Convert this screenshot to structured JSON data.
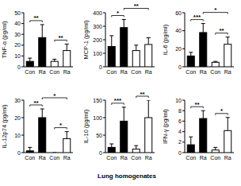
{
  "chart_data": [
    {
      "type": "bar",
      "ylabel": "TNF-α (pg/ml)",
      "categories": [
        "Con",
        "Ra",
        "Con",
        "Ra"
      ],
      "values": [
        5,
        27,
        5,
        15
      ],
      "errors": [
        3,
        12,
        2,
        6
      ],
      "colors": [
        "#000000",
        "#000000",
        "#ffffff",
        "#ffffff"
      ],
      "ylim": [
        0,
        50
      ],
      "yticks": [
        0,
        10,
        20,
        30,
        40,
        50
      ],
      "significance": [
        {
          "text": "**",
          "bars": [
            0,
            1
          ]
        },
        {
          "text": "**",
          "bars": [
            2,
            3
          ]
        }
      ]
    },
    {
      "type": "bar",
      "ylabel": "MCP-1 (pg/ml)",
      "categories": [
        "Con",
        "Ra",
        "Con",
        "Ra"
      ],
      "values": [
        150,
        290,
        120,
        165
      ],
      "errors": [
        80,
        60,
        40,
        50
      ],
      "colors": [
        "#000000",
        "#000000",
        "#ffffff",
        "#ffffff"
      ],
      "ylim": [
        0,
        400
      ],
      "yticks": [
        0,
        100,
        200,
        300,
        400
      ],
      "significance": [
        {
          "text": "*",
          "bars": [
            0,
            1
          ]
        },
        {
          "text": "**",
          "bars": [
            1,
            3
          ]
        }
      ]
    },
    {
      "type": "bar",
      "ylabel": "IL-6 (pg/ml)",
      "categories": [
        "Con",
        "Ra",
        "Con",
        "Ra"
      ],
      "values": [
        12,
        38,
        5,
        25
      ],
      "errors": [
        4,
        10,
        1,
        8
      ],
      "colors": [
        "#000000",
        "#000000",
        "#ffffff",
        "#ffffff"
      ],
      "ylim": [
        0,
        60
      ],
      "yticks": [
        0,
        20,
        40,
        60
      ],
      "significance": [
        {
          "text": "***",
          "bars": [
            0,
            1
          ]
        },
        {
          "text": "**",
          "bars": [
            2,
            3
          ]
        },
        {
          "text": "*",
          "bars": [
            1,
            3
          ]
        }
      ]
    },
    {
      "type": "bar",
      "ylabel": "IL-12p74 (pg/ml)",
      "categories": [
        "Con",
        "Ra",
        "Con",
        "Ra"
      ],
      "values": [
        1,
        20,
        0,
        8
      ],
      "errors": [
        2,
        5,
        0,
        4
      ],
      "colors": [
        "#000000",
        "#000000",
        "#ffffff",
        "#ffffff"
      ],
      "ylim": [
        0,
        30
      ],
      "yticks": [
        0,
        10,
        20,
        30
      ],
      "significance": [
        {
          "text": "**",
          "bars": [
            0,
            1
          ]
        },
        {
          "text": "*",
          "bars": [
            2,
            3
          ]
        },
        {
          "text": "*",
          "bars": [
            1,
            3
          ]
        }
      ]
    },
    {
      "type": "bar",
      "ylabel": "IL-10 (pg/ml)",
      "categories": [
        "Con",
        "Ra",
        "Con",
        "Ra"
      ],
      "values": [
        15,
        90,
        10,
        100
      ],
      "errors": [
        10,
        40,
        10,
        50
      ],
      "colors": [
        "#000000",
        "#000000",
        "#ffffff",
        "#ffffff"
      ],
      "ylim": [
        0,
        150
      ],
      "yticks": [
        0,
        50,
        100,
        150
      ],
      "significance": [
        {
          "text": "***",
          "bars": [
            0,
            1
          ]
        },
        {
          "text": "**",
          "bars": [
            2,
            3
          ]
        }
      ]
    },
    {
      "type": "bar",
      "ylabel": "IFN-γ (pg/ml)",
      "categories": [
        "Con",
        "Ra",
        "Con",
        "Ra"
      ],
      "values": [
        1.5,
        6.5,
        0.5,
        4.2
      ],
      "errors": [
        1.5,
        1.5,
        0.5,
        2.5
      ],
      "colors": [
        "#000000",
        "#000000",
        "#ffffff",
        "#ffffff"
      ],
      "ylim": [
        0,
        10
      ],
      "yticks": [
        0,
        2,
        4,
        6,
        8,
        10
      ],
      "significance": [
        {
          "text": "**",
          "bars": [
            0,
            1
          ]
        },
        {
          "text": "*",
          "bars": [
            2,
            3
          ]
        }
      ]
    }
  ],
  "caption": "Lung homogenates"
}
